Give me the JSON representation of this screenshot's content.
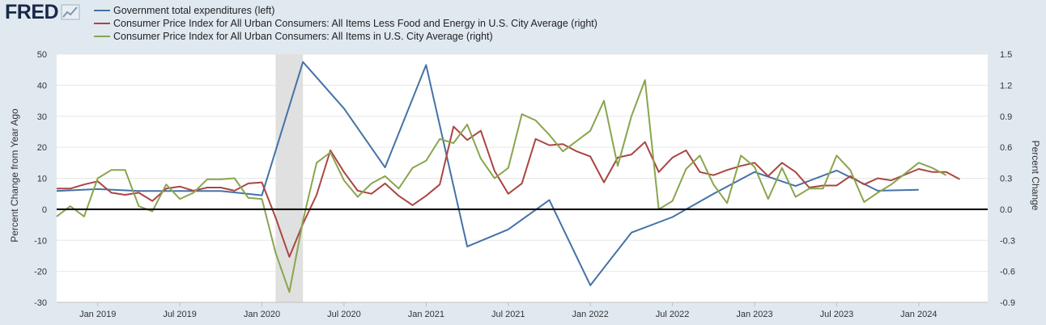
{
  "brand": {
    "name": "FRED"
  },
  "chart_data": {
    "type": "line",
    "legend": "top-left",
    "left_axis": {
      "label": "Percent Change from Year Ago",
      "min": -30,
      "max": 50,
      "ticks": [
        {
          "v": 50,
          "t": "50"
        },
        {
          "v": 40,
          "t": "40"
        },
        {
          "v": 30,
          "t": "30"
        },
        {
          "v": 20,
          "t": "20"
        },
        {
          "v": 10,
          "t": "10"
        },
        {
          "v": 0,
          "t": "0"
        },
        {
          "v": -10,
          "t": "-10"
        },
        {
          "v": -20,
          "t": "-20"
        },
        {
          "v": -30,
          "t": "-30"
        }
      ]
    },
    "right_axis": {
      "label": "Percent Change",
      "min": -0.9,
      "max": 1.5,
      "ticks": [
        {
          "v": 1.5,
          "t": "1.5"
        },
        {
          "v": 1.2,
          "t": "1.2"
        },
        {
          "v": 0.9,
          "t": "0.9"
        },
        {
          "v": 0.6,
          "t": "0.6"
        },
        {
          "v": 0.3,
          "t": "0.3"
        },
        {
          "v": 0.0,
          "t": "0.0"
        },
        {
          "v": -0.3,
          "t": "-0.3"
        },
        {
          "v": -0.6,
          "t": "-0.6"
        },
        {
          "v": -0.9,
          "t": "-0.9"
        }
      ]
    },
    "x_axis": {
      "min": 2018.75,
      "max": 2024.42,
      "ticks": [
        {
          "v": 2019.0,
          "t": "Jan 2019"
        },
        {
          "v": 2019.5,
          "t": "Jul 2019"
        },
        {
          "v": 2020.0,
          "t": "Jan 2020"
        },
        {
          "v": 2020.5,
          "t": "Jul 2020"
        },
        {
          "v": 2021.0,
          "t": "Jan 2021"
        },
        {
          "v": 2021.5,
          "t": "Jul 2021"
        },
        {
          "v": 2022.0,
          "t": "Jan 2022"
        },
        {
          "v": 2022.5,
          "t": "Jul 2022"
        },
        {
          "v": 2023.0,
          "t": "Jan 2023"
        },
        {
          "v": 2023.5,
          "t": "Jul 2023"
        },
        {
          "v": 2024.0,
          "t": "Jan 2024"
        }
      ]
    },
    "recession": [
      2020.083,
      2020.25
    ],
    "series": [
      {
        "name": "Government total expenditures (left)",
        "axis": "left",
        "color": "#4572a7",
        "points": [
          [
            2018.75,
            5.9
          ],
          [
            2019.0,
            6.5
          ],
          [
            2019.25,
            5.9
          ],
          [
            2019.5,
            5.9
          ],
          [
            2019.75,
            5.9
          ],
          [
            2020.0,
            4.5
          ],
          [
            2020.25,
            47.5
          ],
          [
            2020.5,
            32.5
          ],
          [
            2020.75,
            13.5
          ],
          [
            2021.0,
            46.5
          ],
          [
            2021.25,
            -12
          ],
          [
            2021.5,
            -6.5
          ],
          [
            2021.75,
            3
          ],
          [
            2022.0,
            -24.5
          ],
          [
            2022.25,
            -7.5
          ],
          [
            2022.5,
            -2.5
          ],
          [
            2022.75,
            5
          ],
          [
            2023.0,
            12
          ],
          [
            2023.25,
            7.5
          ],
          [
            2023.5,
            12.5
          ],
          [
            2023.75,
            6
          ],
          [
            2024.0,
            6.3
          ]
        ]
      },
      {
        "name": "Consumer Price Index for All Urban Consumers: All Items Less Food and Energy in U.S. City Average (right)",
        "axis": "right",
        "color": "#aa4643",
        "points": [
          [
            2018.75,
            0.2
          ],
          [
            2018.833,
            0.2
          ],
          [
            2018.917,
            0.24
          ],
          [
            2019.0,
            0.27
          ],
          [
            2019.083,
            0.16
          ],
          [
            2019.167,
            0.14
          ],
          [
            2019.25,
            0.16
          ],
          [
            2019.333,
            0.08
          ],
          [
            2019.417,
            0.2
          ],
          [
            2019.5,
            0.22
          ],
          [
            2019.583,
            0.18
          ],
          [
            2019.667,
            0.21
          ],
          [
            2019.75,
            0.21
          ],
          [
            2019.833,
            0.18
          ],
          [
            2019.917,
            0.25
          ],
          [
            2020.0,
            0.26
          ],
          [
            2020.083,
            -0.08
          ],
          [
            2020.167,
            -0.46
          ],
          [
            2020.25,
            -0.14
          ],
          [
            2020.333,
            0.14
          ],
          [
            2020.417,
            0.57
          ],
          [
            2020.5,
            0.36
          ],
          [
            2020.583,
            0.18
          ],
          [
            2020.667,
            0.15
          ],
          [
            2020.75,
            0.25
          ],
          [
            2020.833,
            0.13
          ],
          [
            2020.917,
            0.04
          ],
          [
            2021.0,
            0.13
          ],
          [
            2021.083,
            0.24
          ],
          [
            2021.167,
            0.8
          ],
          [
            2021.25,
            0.67
          ],
          [
            2021.333,
            0.76
          ],
          [
            2021.417,
            0.37
          ],
          [
            2021.5,
            0.15
          ],
          [
            2021.583,
            0.25
          ],
          [
            2021.667,
            0.68
          ],
          [
            2021.75,
            0.62
          ],
          [
            2021.833,
            0.63
          ],
          [
            2021.917,
            0.56
          ],
          [
            2022.0,
            0.51
          ],
          [
            2022.083,
            0.26
          ],
          [
            2022.167,
            0.5
          ],
          [
            2022.25,
            0.53
          ],
          [
            2022.333,
            0.65
          ],
          [
            2022.417,
            0.36
          ],
          [
            2022.5,
            0.5
          ],
          [
            2022.583,
            0.57
          ],
          [
            2022.667,
            0.36
          ],
          [
            2022.75,
            0.33
          ],
          [
            2022.833,
            0.38
          ],
          [
            2022.917,
            0.42
          ],
          [
            2023.0,
            0.45
          ],
          [
            2023.083,
            0.32
          ],
          [
            2023.167,
            0.45
          ],
          [
            2023.25,
            0.36
          ],
          [
            2023.333,
            0.21
          ],
          [
            2023.417,
            0.23
          ],
          [
            2023.5,
            0.23
          ],
          [
            2023.583,
            0.32
          ],
          [
            2023.667,
            0.24
          ],
          [
            2023.75,
            0.3
          ],
          [
            2023.833,
            0.28
          ],
          [
            2024.0,
            0.39
          ],
          [
            2024.083,
            0.36
          ],
          [
            2024.167,
            0.36
          ],
          [
            2024.25,
            0.29
          ]
        ]
      },
      {
        "name": "Consumer Price Index for All Urban Consumers: All Items in U.S. City Average (right)",
        "axis": "right",
        "color": "#89a54e",
        "points": [
          [
            2018.75,
            -0.07
          ],
          [
            2018.833,
            0.03
          ],
          [
            2018.917,
            -0.07
          ],
          [
            2019.0,
            0.3
          ],
          [
            2019.083,
            0.38
          ],
          [
            2019.167,
            0.38
          ],
          [
            2019.25,
            0.03
          ],
          [
            2019.333,
            -0.02
          ],
          [
            2019.417,
            0.24
          ],
          [
            2019.5,
            0.1
          ],
          [
            2019.583,
            0.16
          ],
          [
            2019.667,
            0.29
          ],
          [
            2019.75,
            0.29
          ],
          [
            2019.833,
            0.3
          ],
          [
            2019.917,
            0.11
          ],
          [
            2020.0,
            0.1
          ],
          [
            2020.083,
            -0.42
          ],
          [
            2020.167,
            -0.8
          ],
          [
            2020.25,
            -0.11
          ],
          [
            2020.333,
            0.45
          ],
          [
            2020.417,
            0.55
          ],
          [
            2020.5,
            0.28
          ],
          [
            2020.583,
            0.12
          ],
          [
            2020.667,
            0.25
          ],
          [
            2020.75,
            0.32
          ],
          [
            2020.833,
            0.2
          ],
          [
            2020.917,
            0.4
          ],
          [
            2021.0,
            0.47
          ],
          [
            2021.083,
            0.68
          ],
          [
            2021.167,
            0.64
          ],
          [
            2021.25,
            0.82
          ],
          [
            2021.333,
            0.49
          ],
          [
            2021.417,
            0.3
          ],
          [
            2021.5,
            0.4
          ],
          [
            2021.583,
            0.92
          ],
          [
            2021.667,
            0.86
          ],
          [
            2021.75,
            0.72
          ],
          [
            2021.833,
            0.56
          ],
          [
            2022.0,
            0.76
          ],
          [
            2022.083,
            1.05
          ],
          [
            2022.167,
            0.42
          ],
          [
            2022.25,
            0.9
          ],
          [
            2022.333,
            1.25
          ],
          [
            2022.417,
            0.0
          ],
          [
            2022.5,
            0.08
          ],
          [
            2022.583,
            0.39
          ],
          [
            2022.667,
            0.52
          ],
          [
            2022.75,
            0.24
          ],
          [
            2022.833,
            0.06
          ],
          [
            2022.917,
            0.52
          ],
          [
            2023.0,
            0.41
          ],
          [
            2023.083,
            0.1
          ],
          [
            2023.167,
            0.4
          ],
          [
            2023.25,
            0.12
          ],
          [
            2023.333,
            0.2
          ],
          [
            2023.417,
            0.2
          ],
          [
            2023.5,
            0.52
          ],
          [
            2023.583,
            0.38
          ],
          [
            2023.667,
            0.07
          ],
          [
            2023.75,
            0.16
          ],
          [
            2023.833,
            0.24
          ],
          [
            2024.0,
            0.45
          ],
          [
            2024.083,
            0.4
          ],
          [
            2024.167,
            0.33
          ]
        ]
      }
    ]
  }
}
